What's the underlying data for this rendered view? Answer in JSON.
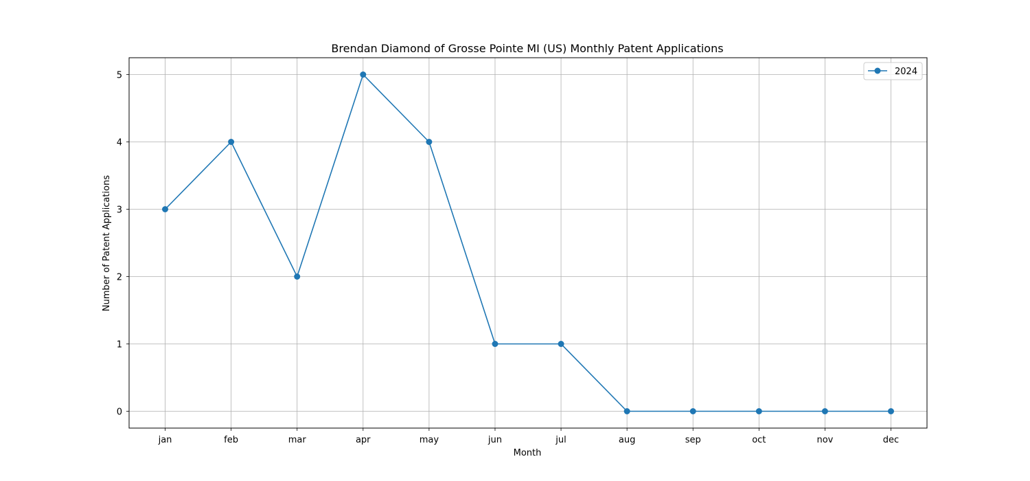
{
  "chart_data": {
    "type": "line",
    "title": "Brendan Diamond of Grosse Pointe MI (US) Monthly Patent Applications",
    "xlabel": "Month",
    "ylabel": "Number of Patent Applications",
    "categories": [
      "jan",
      "feb",
      "mar",
      "apr",
      "may",
      "jun",
      "jul",
      "aug",
      "sep",
      "oct",
      "nov",
      "dec"
    ],
    "series": [
      {
        "name": "2024",
        "values": [
          3,
          4,
          2,
          5,
          4,
          1,
          1,
          0,
          0,
          0,
          0,
          0
        ]
      }
    ],
    "ylim": [
      -0.25,
      5.25
    ],
    "yticks": [
      0,
      1,
      2,
      3,
      4,
      5
    ],
    "grid": true,
    "legend_position": "top-right",
    "colors": {
      "series": "#1f77b4",
      "grid": "#b0b0b0",
      "axes": "#000000"
    }
  }
}
